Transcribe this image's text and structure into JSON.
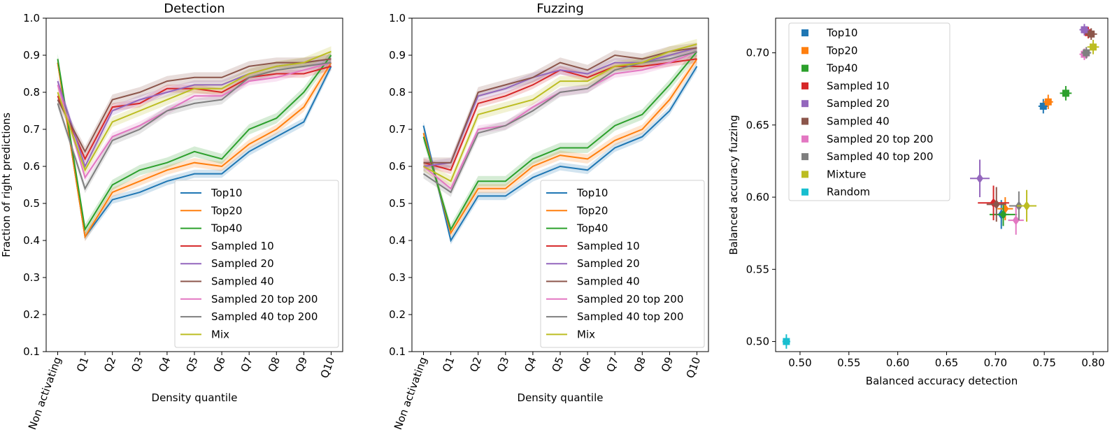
{
  "chart_data": [
    {
      "type": "line",
      "title": "Detection",
      "xlabel": "Density quantile",
      "ylabel": "Fraction of right predictions",
      "categories": [
        "Non activating",
        "Q1",
        "Q2",
        "Q3",
        "Q4",
        "Q5",
        "Q6",
        "Q7",
        "Q8",
        "Q9",
        "Q10"
      ],
      "ylim": [
        0.1,
        1.0
      ],
      "yticks": [
        "0.1",
        "0.2",
        "0.3",
        "0.4",
        "0.5",
        "0.6",
        "0.7",
        "0.8",
        "0.9",
        "1.0"
      ],
      "legend_position": "lower right",
      "series": [
        {
          "name": "Top10",
          "color": "#1f77b4",
          "values": [
            0.88,
            0.41,
            0.51,
            0.53,
            0.56,
            0.58,
            0.58,
            0.64,
            0.68,
            0.72,
            0.87
          ]
        },
        {
          "name": "Top20",
          "color": "#ff7f0e",
          "values": [
            0.88,
            0.41,
            0.53,
            0.56,
            0.59,
            0.61,
            0.6,
            0.66,
            0.7,
            0.76,
            0.88
          ]
        },
        {
          "name": "Top40",
          "color": "#2ca02c",
          "values": [
            0.89,
            0.43,
            0.55,
            0.59,
            0.61,
            0.64,
            0.62,
            0.7,
            0.73,
            0.8,
            0.9
          ]
        },
        {
          "name": "Sampled 10",
          "color": "#d62728",
          "values": [
            0.79,
            0.62,
            0.76,
            0.77,
            0.81,
            0.81,
            0.8,
            0.84,
            0.85,
            0.85,
            0.87
          ]
        },
        {
          "name": "Sampled 20",
          "color": "#9467bd",
          "values": [
            0.83,
            0.6,
            0.75,
            0.78,
            0.8,
            0.82,
            0.82,
            0.85,
            0.87,
            0.88,
            0.89
          ]
        },
        {
          "name": "Sampled 40",
          "color": "#8c564b",
          "values": [
            0.78,
            0.64,
            0.78,
            0.8,
            0.83,
            0.84,
            0.84,
            0.87,
            0.88,
            0.88,
            0.89
          ]
        },
        {
          "name": "Sampled 20 top 200",
          "color": "#e377c2",
          "values": [
            0.82,
            0.57,
            0.68,
            0.71,
            0.75,
            0.79,
            0.79,
            0.83,
            0.84,
            0.86,
            0.88
          ]
        },
        {
          "name": "Sampled 40 top 200",
          "color": "#7f7f7f",
          "values": [
            0.77,
            0.54,
            0.67,
            0.7,
            0.75,
            0.77,
            0.78,
            0.84,
            0.86,
            0.87,
            0.88
          ]
        },
        {
          "name": "Mix",
          "color": "#bcbd22",
          "values": [
            0.8,
            0.59,
            0.72,
            0.75,
            0.78,
            0.81,
            0.81,
            0.85,
            0.87,
            0.88,
            0.91
          ]
        }
      ]
    },
    {
      "type": "line",
      "title": "Fuzzing",
      "xlabel": "Density quantile",
      "ylabel": "",
      "categories": [
        "Non activating",
        "Q1",
        "Q2",
        "Q3",
        "Q4",
        "Q5",
        "Q6",
        "Q7",
        "Q8",
        "Q9",
        "Q10"
      ],
      "ylim": [
        0.1,
        1.0
      ],
      "yticks": [
        "0.1",
        "0.2",
        "0.3",
        "0.4",
        "0.5",
        "0.6",
        "0.7",
        "0.8",
        "0.9",
        "1.0"
      ],
      "legend_position": "lower right",
      "series": [
        {
          "name": "Top10",
          "color": "#1f77b4",
          "values": [
            0.71,
            0.4,
            0.52,
            0.52,
            0.57,
            0.6,
            0.59,
            0.65,
            0.68,
            0.75,
            0.87
          ]
        },
        {
          "name": "Top20",
          "color": "#ff7f0e",
          "values": [
            0.69,
            0.42,
            0.54,
            0.54,
            0.6,
            0.63,
            0.62,
            0.67,
            0.7,
            0.78,
            0.89
          ]
        },
        {
          "name": "Top40",
          "color": "#2ca02c",
          "values": [
            0.68,
            0.43,
            0.56,
            0.56,
            0.62,
            0.65,
            0.65,
            0.71,
            0.74,
            0.82,
            0.91
          ]
        },
        {
          "name": "Sampled 10",
          "color": "#d62728",
          "values": [
            0.61,
            0.59,
            0.77,
            0.79,
            0.82,
            0.86,
            0.84,
            0.87,
            0.87,
            0.88,
            0.89
          ]
        },
        {
          "name": "Sampled 20",
          "color": "#9467bd",
          "values": [
            0.6,
            0.61,
            0.79,
            0.81,
            0.84,
            0.86,
            0.85,
            0.88,
            0.88,
            0.9,
            0.92
          ]
        },
        {
          "name": "Sampled 40",
          "color": "#8c564b",
          "values": [
            0.61,
            0.61,
            0.8,
            0.82,
            0.84,
            0.88,
            0.86,
            0.9,
            0.89,
            0.91,
            0.92
          ]
        },
        {
          "name": "Sampled 20 top 200",
          "color": "#e377c2",
          "values": [
            0.6,
            0.54,
            0.7,
            0.71,
            0.76,
            0.8,
            0.81,
            0.85,
            0.86,
            0.88,
            0.91
          ]
        },
        {
          "name": "Sampled 40 top 200",
          "color": "#7f7f7f",
          "values": [
            0.58,
            0.53,
            0.69,
            0.71,
            0.75,
            0.8,
            0.81,
            0.86,
            0.88,
            0.89,
            0.91
          ]
        },
        {
          "name": "Mix",
          "color": "#bcbd22",
          "values": [
            0.6,
            0.56,
            0.74,
            0.76,
            0.78,
            0.83,
            0.83,
            0.87,
            0.88,
            0.91,
            0.93
          ]
        }
      ]
    },
    {
      "type": "scatter",
      "title": "",
      "xlabel": "Balanced accuracy detection",
      "ylabel": "Balanced accuracy fuzzing",
      "xlim": [
        0.475,
        0.815
      ],
      "ylim": [
        0.493,
        0.724
      ],
      "xticks": [
        "0.50",
        "0.55",
        "0.60",
        "0.65",
        "0.70",
        "0.75",
        "0.80"
      ],
      "yticks": [
        "0.50",
        "0.55",
        "0.60",
        "0.65",
        "0.70"
      ],
      "legend_position": "upper left",
      "marker_legend": "square = primary (cross errorbars), diamond = secondary",
      "series": [
        {
          "name": "Top10",
          "color": "#1f77b4",
          "points": [
            {
              "x": 0.749,
              "y": 0.663,
              "xerr": 0.005,
              "yerr": 0.005,
              "marker": "s"
            },
            {
              "x": 0.706,
              "y": 0.588,
              "xerr": 0.008,
              "yerr": 0.01,
              "marker": "d"
            }
          ]
        },
        {
          "name": "Top20",
          "color": "#ff7f0e",
          "points": [
            {
              "x": 0.754,
              "y": 0.666,
              "xerr": 0.005,
              "yerr": 0.005,
              "marker": "s"
            },
            {
              "x": 0.71,
              "y": 0.592,
              "xerr": 0.008,
              "yerr": 0.008,
              "marker": "d"
            }
          ]
        },
        {
          "name": "Top40",
          "color": "#2ca02c",
          "points": [
            {
              "x": 0.772,
              "y": 0.672,
              "xerr": 0.006,
              "yerr": 0.005,
              "marker": "s"
            },
            {
              "x": 0.708,
              "y": 0.588,
              "xerr": 0.014,
              "yerr": 0.008,
              "marker": "d"
            }
          ]
        },
        {
          "name": "Sampled 10",
          "color": "#d62728",
          "points": [
            {
              "x": 0.795,
              "y": 0.714,
              "xerr": 0.006,
              "yerr": 0.004,
              "marker": "s"
            },
            {
              "x": 0.698,
              "y": 0.596,
              "xerr": 0.016,
              "yerr": 0.012,
              "marker": "d"
            }
          ]
        },
        {
          "name": "Sampled 20",
          "color": "#9467bd",
          "points": [
            {
              "x": 0.791,
              "y": 0.716,
              "xerr": 0.005,
              "yerr": 0.004,
              "marker": "s"
            },
            {
              "x": 0.684,
              "y": 0.613,
              "xerr": 0.01,
              "yerr": 0.013,
              "marker": "d"
            }
          ]
        },
        {
          "name": "Sampled 40",
          "color": "#8c564b",
          "points": [
            {
              "x": 0.798,
              "y": 0.713,
              "xerr": 0.006,
              "yerr": 0.004,
              "marker": "s"
            },
            {
              "x": 0.701,
              "y": 0.595,
              "xerr": 0.01,
              "yerr": 0.012,
              "marker": "d"
            }
          ]
        },
        {
          "name": "Sampled 20 top 200",
          "color": "#e377c2",
          "points": [
            {
              "x": 0.791,
              "y": 0.699,
              "xerr": 0.005,
              "yerr": 0.004,
              "marker": "s"
            },
            {
              "x": 0.721,
              "y": 0.584,
              "xerr": 0.008,
              "yerr": 0.01,
              "marker": "d"
            }
          ]
        },
        {
          "name": "Sampled 40 top 200",
          "color": "#7f7f7f",
          "points": [
            {
              "x": 0.793,
              "y": 0.7,
              "xerr": 0.005,
              "yerr": 0.004,
              "marker": "s"
            },
            {
              "x": 0.724,
              "y": 0.594,
              "xerr": 0.01,
              "yerr": 0.01,
              "marker": "d"
            }
          ]
        },
        {
          "name": "Mixture",
          "color": "#bcbd22",
          "points": [
            {
              "x": 0.8,
              "y": 0.704,
              "xerr": 0.006,
              "yerr": 0.005,
              "marker": "s"
            },
            {
              "x": 0.732,
              "y": 0.594,
              "xerr": 0.01,
              "yerr": 0.011,
              "marker": "d"
            }
          ]
        },
        {
          "name": "Random",
          "color": "#17becf",
          "points": [
            {
              "x": 0.486,
              "y": 0.5,
              "xerr": 0.004,
              "yerr": 0.005,
              "marker": "s"
            }
          ]
        }
      ]
    }
  ]
}
